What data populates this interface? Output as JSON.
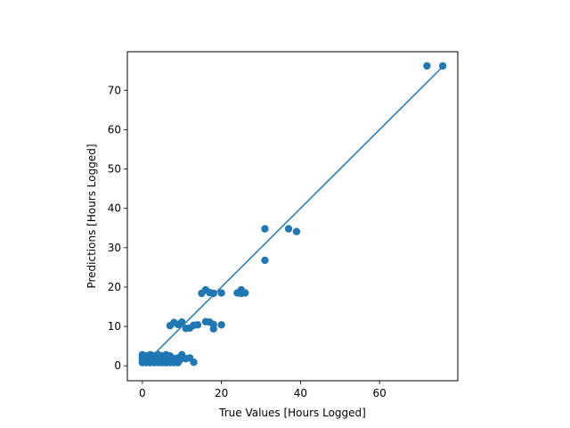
{
  "chart_data": {
    "type": "scatter",
    "xlabel": "True Values [Hours Logged]",
    "ylabel": "Predictions [Hours Logged]",
    "xlim": [
      -3.8,
      79.8
    ],
    "ylim": [
      -3.8,
      79.8
    ],
    "xticks": [
      0,
      20,
      40,
      60
    ],
    "yticks": [
      0,
      10,
      20,
      30,
      40,
      50,
      60,
      70
    ],
    "grid": false,
    "marker_color": "#1f77b4",
    "reference_line": {
      "from": [
        0,
        0
      ],
      "to": [
        76,
        76
      ],
      "color": "#1f77b4"
    },
    "points": [
      [
        0,
        0.8
      ],
      [
        0,
        1.3
      ],
      [
        0,
        1.8
      ],
      [
        0,
        2.3
      ],
      [
        0,
        2.8
      ],
      [
        0.5,
        1.0
      ],
      [
        0.5,
        2.0
      ],
      [
        1,
        0.8
      ],
      [
        1,
        1.5
      ],
      [
        1,
        2.5
      ],
      [
        1.5,
        1.2
      ],
      [
        1.5,
        2.2
      ],
      [
        2,
        0.8
      ],
      [
        2,
        1.6
      ],
      [
        2,
        2.8
      ],
      [
        2.5,
        1.0
      ],
      [
        2.5,
        2.0
      ],
      [
        3,
        0.8
      ],
      [
        3,
        1.5
      ],
      [
        3,
        2.5
      ],
      [
        3.5,
        1.2
      ],
      [
        3.5,
        2.2
      ],
      [
        4,
        0.8
      ],
      [
        4,
        1.8
      ],
      [
        4,
        2.8
      ],
      [
        4.5,
        1.0
      ],
      [
        4.5,
        2.3
      ],
      [
        5,
        0.8
      ],
      [
        5,
        1.5
      ],
      [
        5,
        2.5
      ],
      [
        5.5,
        1.2
      ],
      [
        5.5,
        2.0
      ],
      [
        6,
        0.8
      ],
      [
        6,
        1.8
      ],
      [
        6,
        2.8
      ],
      [
        6.5,
        1.0
      ],
      [
        6.5,
        2.2
      ],
      [
        7,
        0.8
      ],
      [
        7,
        1.5
      ],
      [
        7,
        2.5
      ],
      [
        7.5,
        1.2
      ],
      [
        7.5,
        2.0
      ],
      [
        8,
        0.8
      ],
      [
        8,
        1.8
      ],
      [
        8.5,
        1.2
      ],
      [
        9,
        0.8
      ],
      [
        9,
        2.0
      ],
      [
        9.5,
        1.5
      ],
      [
        10,
        2.2
      ],
      [
        10,
        2.8
      ],
      [
        11,
        1.8
      ],
      [
        12,
        2.0
      ],
      [
        13,
        0.9
      ],
      [
        7,
        10.2
      ],
      [
        8,
        11.0
      ],
      [
        9,
        10.5
      ],
      [
        10,
        11.1
      ],
      [
        11,
        9.5
      ],
      [
        12,
        9.6
      ],
      [
        13,
        10.3
      ],
      [
        14,
        10.4
      ],
      [
        15,
        18.4
      ],
      [
        16,
        19.3
      ],
      [
        17,
        18.6
      ],
      [
        18,
        18.4
      ],
      [
        20,
        18.5
      ],
      [
        16,
        11.2
      ],
      [
        17,
        11.1
      ],
      [
        18,
        10.5
      ],
      [
        18,
        9.4
      ],
      [
        20,
        10.4
      ],
      [
        24,
        18.5
      ],
      [
        25,
        19.3
      ],
      [
        25,
        18.4
      ],
      [
        26,
        18.5
      ],
      [
        31,
        34.8
      ],
      [
        31,
        26.8
      ],
      [
        37,
        34.8
      ],
      [
        39,
        34.1
      ],
      [
        72,
        76.2
      ],
      [
        76,
        76.2
      ]
    ]
  }
}
